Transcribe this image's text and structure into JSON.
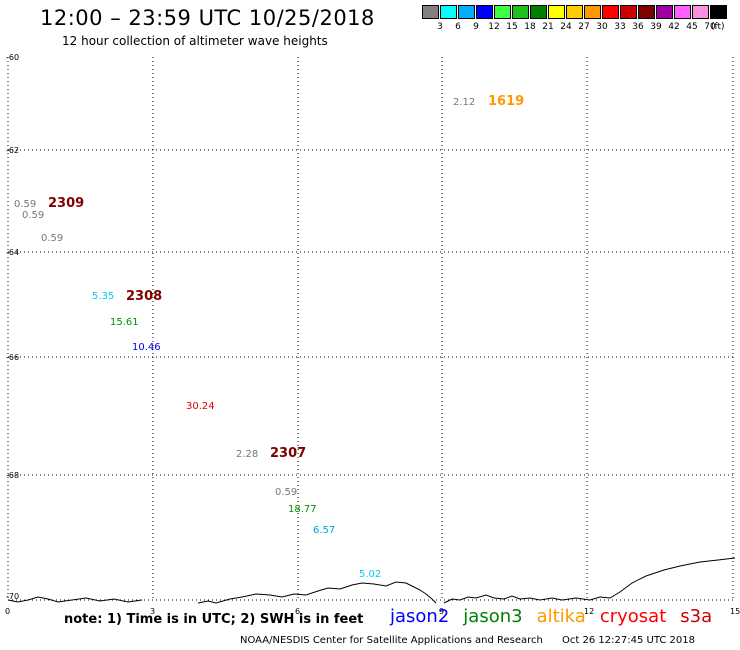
{
  "header": {
    "title": "12:00 – 23:59 UTC 10/25/2018",
    "subtitle": "12 hour collection of altimeter wave heights"
  },
  "color_scale": {
    "unit": "(ft)",
    "colors": [
      "#808080",
      "#00ffff",
      "#00b0ff",
      "#0000ff",
      "#40ff40",
      "#20c020",
      "#008000",
      "#ffff00",
      "#ffcc00",
      "#ff9900",
      "#ff0000",
      "#cc0000",
      "#800000",
      "#a000a0",
      "#ff60ff",
      "#ff90e0",
      "#000000"
    ],
    "labels": [
      "3",
      "6",
      "9",
      "12",
      "15",
      "18",
      "21",
      "24",
      "27",
      "30",
      "33",
      "36",
      "39",
      "42",
      "45",
      "70"
    ]
  },
  "map": {
    "y_labels": [
      "-60",
      "-62",
      "-64",
      "-66",
      "-68",
      "-70"
    ],
    "x_labels": [
      "0",
      "3",
      "6",
      "9",
      "12",
      "15"
    ],
    "observations": [
      {
        "text": "2.12",
        "color": "#777777"
      },
      {
        "text": "1619",
        "color": "#ff9900",
        "kind": "time"
      },
      {
        "text": "0.59",
        "color": "#777777"
      },
      {
        "text": "2309",
        "color": "#800000",
        "kind": "time"
      },
      {
        "text": "0.59",
        "color": "#777777"
      },
      {
        "text": "0.59",
        "color": "#777777"
      },
      {
        "text": "5.35",
        "color": "#00c8ff"
      },
      {
        "text": "2308",
        "color": "#800000",
        "kind": "time"
      },
      {
        "text": "15.61",
        "color": "#009000"
      },
      {
        "text": "10.46",
        "color": "#0000ee"
      },
      {
        "text": "30.24",
        "color": "#dd0000"
      },
      {
        "text": "2.28",
        "color": "#777777"
      },
      {
        "text": "2307",
        "color": "#800000",
        "kind": "time"
      },
      {
        "text": "0.59",
        "color": "#777777"
      },
      {
        "text": "18.77",
        "color": "#009000"
      },
      {
        "text": "6.57",
        "color": "#00a0e0"
      },
      {
        "text": "5.02",
        "color": "#00ccff"
      }
    ]
  },
  "footer": {
    "note": "note: 1) Time is in UTC; 2) SWH is in feet",
    "satellites": [
      {
        "name": "jason2",
        "color": "#0000ff"
      },
      {
        "name": "jason3",
        "color": "#008000"
      },
      {
        "name": "altika",
        "color": "#ff9900"
      },
      {
        "name": "cryosat",
        "color": "#ff0000"
      },
      {
        "name": "s3a",
        "color": "#cc0000"
      }
    ],
    "credit": "NOAA/NESDIS Center for Satellite Applications and Research",
    "timestamp": "Oct 26 12:27:45 UTC 2018"
  }
}
